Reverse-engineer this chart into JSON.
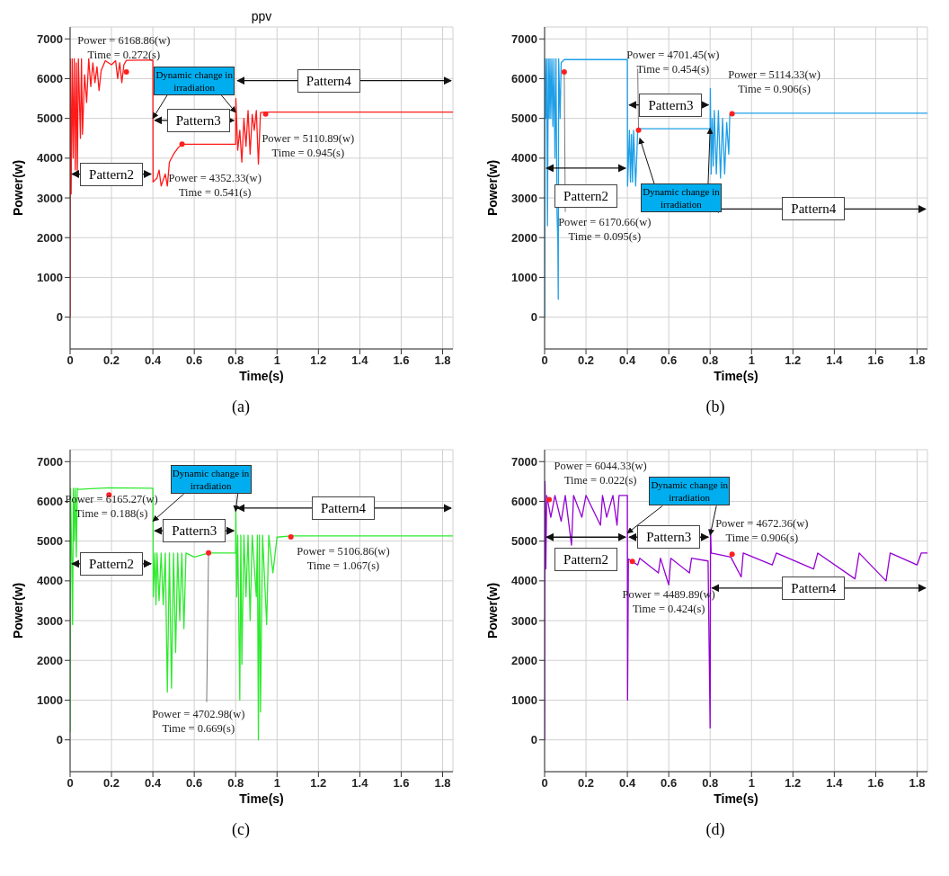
{
  "chart_data": [
    {
      "type": "line",
      "title": "ppv",
      "xlabel": "Time(s)",
      "ylabel": "Power(w)",
      "xlim": [
        0,
        1.85
      ],
      "ylim": [
        -800,
        7300
      ],
      "xticks": [
        0,
        0.2,
        0.4,
        0.6,
        0.8,
        1,
        1.2,
        1.4,
        1.6,
        1.8
      ],
      "yticks": [
        0,
        1000,
        2000,
        3000,
        4000,
        5000,
        6000,
        7000
      ],
      "grid": true,
      "series": [
        {
          "color": "#ff1a1a",
          "x": [
            0,
            0.001,
            0.005,
            0.01,
            0.015,
            0.02,
            0.025,
            0.03,
            0.035,
            0.04,
            0.05,
            0.055,
            0.06,
            0.07,
            0.08,
            0.09,
            0.1,
            0.11,
            0.12,
            0.13,
            0.14,
            0.15,
            0.17,
            0.2,
            0.22,
            0.23,
            0.24,
            0.25,
            0.26,
            0.272,
            0.4,
            0.401,
            0.42,
            0.43,
            0.44,
            0.46,
            0.47,
            0.48,
            0.5,
            0.52,
            0.541,
            0.8,
            0.801,
            0.81,
            0.82,
            0.83,
            0.84,
            0.85,
            0.86,
            0.87,
            0.88,
            0.89,
            0.9,
            0.91,
            0.92,
            0.945,
            1.85
          ],
          "values": [
            0,
            6500,
            3100,
            6500,
            4000,
            6500,
            3700,
            6400,
            3600,
            6500,
            4500,
            6500,
            4600,
            6100,
            5400,
            6500,
            5800,
            6400,
            5900,
            6300,
            5700,
            6200,
            6450,
            6350,
            6450,
            6000,
            6400,
            5900,
            6350,
            6460,
            6470,
            3400,
            3500,
            3700,
            3300,
            3600,
            3300,
            3900,
            4100,
            4250,
            4350,
            4350,
            5500,
            4200,
            4700,
            3900,
            5000,
            4300,
            5200,
            4100,
            5100,
            4700,
            5200,
            3850,
            5150,
            5160,
            5160
          ]
        }
      ],
      "annotations": [
        {
          "text": "Power = 6168.86(w)\nTime = 0.272(s)",
          "x": 0.272,
          "y": 6168.86
        },
        {
          "text": "Power = 4352.33(w)\nTime = 0.541(s)",
          "x": 0.541,
          "y": 4352.33
        },
        {
          "text": "Power = 5110.89(w)\nTime = 0.945(s)",
          "x": 0.945,
          "y": 5110.89
        },
        "Pattern2",
        "Pattern3",
        "Pattern4",
        {
          "text": "Dynamic change in irradiation",
          "x": 0.4,
          "y": 5000
        },
        "(a)"
      ]
    },
    {
      "type": "line",
      "xlabel": "Time(s)",
      "ylabel": "Power(w)",
      "xlim": [
        0,
        1.85
      ],
      "ylim": [
        -800,
        7300
      ],
      "xticks": [
        0,
        0.2,
        0.4,
        0.6,
        0.8,
        1,
        1.2,
        1.4,
        1.6,
        1.8
      ],
      "yticks": [
        0,
        1000,
        2000,
        3000,
        4000,
        5000,
        6000,
        7000
      ],
      "grid": true,
      "series": [
        {
          "color": "#1e9fe8",
          "x": [
            0,
            0.002,
            0.006,
            0.01,
            0.014,
            0.018,
            0.022,
            0.026,
            0.03,
            0.035,
            0.04,
            0.045,
            0.05,
            0.055,
            0.06,
            0.064,
            0.066,
            0.068,
            0.075,
            0.08,
            0.095,
            0.4,
            0.401,
            0.41,
            0.415,
            0.42,
            0.425,
            0.43,
            0.44,
            0.45,
            0.454,
            0.8,
            0.801,
            0.805,
            0.81,
            0.815,
            0.82,
            0.83,
            0.84,
            0.85,
            0.86,
            0.87,
            0.88,
            0.89,
            0.895,
            0.906,
            1.85
          ],
          "values": [
            0,
            6500,
            5000,
            6500,
            2300,
            6500,
            5000,
            6500,
            5000,
            6500,
            4800,
            6500,
            4000,
            6500,
            2600,
            1900,
            450,
            6500,
            5000,
            6400,
            6480,
            6480,
            3300,
            4700,
            3400,
            4600,
            3400,
            4700,
            3300,
            4700,
            4740,
            4740,
            5750,
            3600,
            5000,
            3800,
            5200,
            3600,
            5200,
            3500,
            5000,
            3600,
            4900,
            4100,
            5100,
            5130,
            5130
          ]
        }
      ],
      "annotations": [
        {
          "text": "Power = 6170.66(w)\nTime = 0.095(s)",
          "x": 0.095,
          "y": 6170.66
        },
        {
          "text": "Power = 4701.45(w)\nTime = 0.454(s)",
          "x": 0.454,
          "y": 4701.45
        },
        {
          "text": "Power = 5114.33(w)\nTime = 0.906(s)",
          "x": 0.906,
          "y": 5114.33
        },
        "Pattern2",
        "Pattern3",
        "Pattern4",
        {
          "text": "Dynamic change in irradiation",
          "x": 0.46,
          "y": 4500
        },
        "(b)"
      ]
    },
    {
      "type": "line",
      "xlabel": "Time(s)",
      "ylabel": "Power(w)",
      "xlim": [
        0,
        1.85
      ],
      "ylim": [
        -800,
        7300
      ],
      "xticks": [
        0,
        0.2,
        0.4,
        0.6,
        0.8,
        1,
        1.2,
        1.4,
        1.6,
        1.8
      ],
      "yticks": [
        0,
        1000,
        2000,
        3000,
        4000,
        5000,
        6000,
        7000
      ],
      "grid": true,
      "series": [
        {
          "color": "#2eea2e",
          "x": [
            0,
            0.002,
            0.008,
            0.012,
            0.016,
            0.02,
            0.025,
            0.03,
            0.035,
            0.04,
            0.1,
            0.188,
            0.4,
            0.401,
            0.402,
            0.41,
            0.415,
            0.42,
            0.43,
            0.44,
            0.45,
            0.46,
            0.47,
            0.48,
            0.49,
            0.5,
            0.51,
            0.52,
            0.53,
            0.54,
            0.55,
            0.56,
            0.6,
            0.669,
            0.8,
            0.801,
            0.805,
            0.81,
            0.82,
            0.825,
            0.83,
            0.84,
            0.85,
            0.86,
            0.87,
            0.88,
            0.9,
            0.905,
            0.91,
            0.915,
            0.92,
            0.93,
            0.95,
            0.96,
            0.98,
            1.0,
            1.067,
            1.85
          ],
          "values": [
            200,
            6330,
            4500,
            2900,
            6330,
            5000,
            6330,
            4600,
            6330,
            6300,
            6320,
            6340,
            6330,
            5400,
            3600,
            4700,
            3400,
            4700,
            3500,
            4700,
            3400,
            4700,
            1200,
            4700,
            1300,
            4700,
            2200,
            4700,
            3000,
            4700,
            2800,
            4700,
            4600,
            4700,
            4700,
            5800,
            3600,
            5150,
            1000,
            5150,
            1900,
            5150,
            3600,
            5150,
            3000,
            5150,
            3600,
            5150,
            0,
            5150,
            700,
            5150,
            2900,
            5150,
            4200,
            5100,
            5130,
            5130
          ]
        }
      ],
      "annotations": [
        {
          "text": "Power = 6165.27(w)\nTime = 0.188(s)",
          "x": 0.188,
          "y": 6165.27
        },
        {
          "text": "Power = 4702.98(w)\nTime = 0.669(s)",
          "x": 0.669,
          "y": 4702.98
        },
        {
          "text": "Power = 5106.86(w)\nTime = 1.067(s)",
          "x": 1.067,
          "y": 5106.86
        },
        "Pattern2",
        "Pattern3",
        "Pattern4",
        {
          "text": "Dynamic change in irradiation",
          "x": 0.4,
          "y": 5500
        },
        "(c)"
      ]
    },
    {
      "type": "line",
      "xlabel": "Time(s)",
      "ylabel": "Power(w)",
      "xlim": [
        0,
        1.85
      ],
      "ylim": [
        -800,
        7300
      ],
      "xticks": [
        0,
        0.2,
        0.4,
        0.6,
        0.8,
        1,
        1.2,
        1.4,
        1.6,
        1.8
      ],
      "yticks": [
        0,
        1000,
        2000,
        3000,
        4000,
        5000,
        6000,
        7000
      ],
      "grid": true,
      "series": [
        {
          "color": "#9400d3",
          "x": [
            0,
            0.002,
            0.006,
            0.01,
            0.03,
            0.05,
            0.08,
            0.1,
            0.13,
            0.14,
            0.18,
            0.2,
            0.27,
            0.28,
            0.3,
            0.33,
            0.35,
            0.36,
            0.4,
            0.401,
            0.405,
            0.45,
            0.46,
            0.55,
            0.56,
            0.6,
            0.61,
            0.7,
            0.71,
            0.79,
            0.8,
            0.802,
            0.805,
            0.9,
            0.95,
            0.96,
            1.1,
            1.12,
            1.3,
            1.32,
            1.5,
            1.52,
            1.65,
            1.67,
            1.8,
            1.82,
            1.85
          ],
          "values": [
            0,
            6500,
            4300,
            6150,
            5600,
            6150,
            5500,
            6150,
            4900,
            6150,
            5600,
            6150,
            5400,
            6150,
            5600,
            6150,
            5400,
            6150,
            6150,
            1000,
            4550,
            4400,
            4570,
            4200,
            4570,
            3900,
            4570,
            4200,
            4570,
            4500,
            300,
            5300,
            4700,
            4600,
            4100,
            4700,
            4400,
            4700,
            4300,
            4700,
            4050,
            4700,
            4000,
            4700,
            4400,
            4700,
            4700
          ]
        }
      ],
      "annotations": [
        {
          "text": "Power = 6044.33(w)\nTime = 0.022(s)",
          "x": 0.022,
          "y": 6044.33
        },
        {
          "text": "Power = 4489.89(w)\nTime = 0.424(s)",
          "x": 0.424,
          "y": 4489.89
        },
        {
          "text": "Power = 4672.36(w)\nTime = 0.906(s)",
          "x": 0.906,
          "y": 4672.36
        },
        "Pattern2",
        "Pattern3",
        "Pattern4",
        {
          "text": "Dynamic change in irradiation",
          "x": 0.4,
          "y": 5200
        },
        "(d)"
      ]
    }
  ]
}
